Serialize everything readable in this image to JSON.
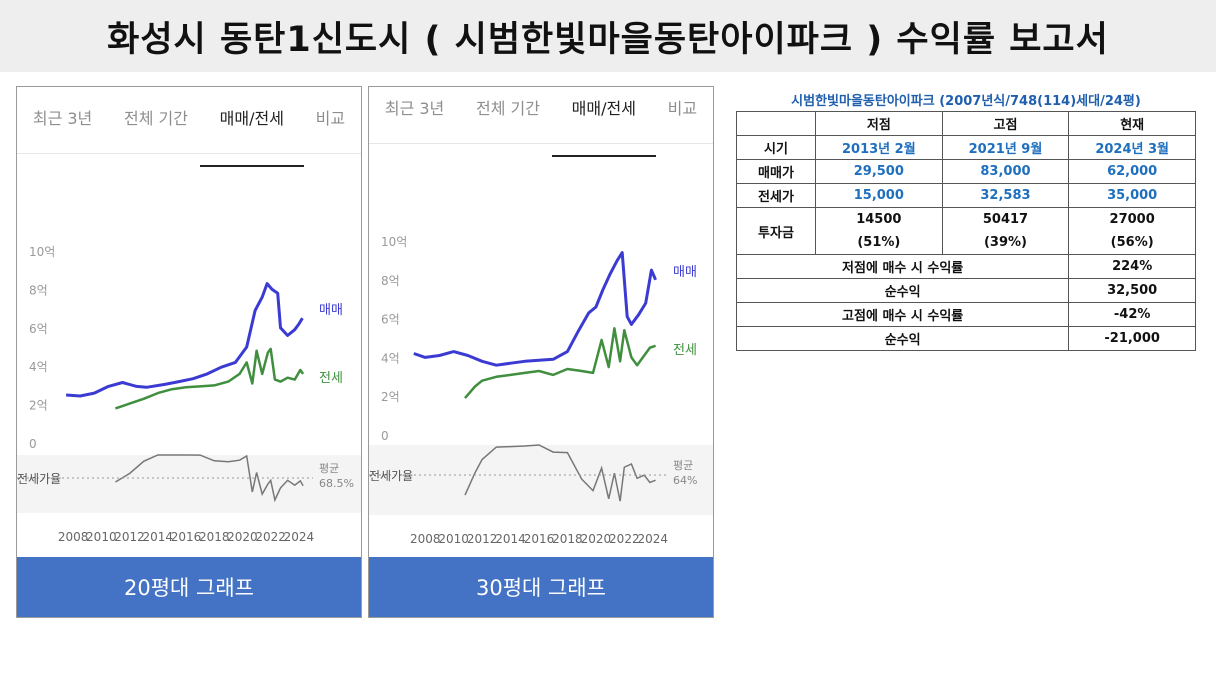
{
  "page": {
    "title": "화성시 동탄1신도시 ( 시범한빛마을동탄아이파크 ) 수익률 보고서"
  },
  "colors": {
    "sale": "#3b3bd4",
    "jeonse": "#3f8f3f",
    "caption_bg": "#4472c4",
    "table_blue": "#1f6fbf"
  },
  "tabs": [
    "최근 3년",
    "전체 기간",
    "매매/전세",
    "비교"
  ],
  "active_tab": "매매/전세",
  "charts": [
    {
      "caption": "20평대 그래프",
      "y_ticks": [
        "10억",
        "8억",
        "6억",
        "4억",
        "2억",
        "0"
      ],
      "x_ticks": [
        "2008",
        "2010",
        "2012",
        "2014",
        "2016",
        "2018",
        "2020",
        "2022",
        "2024"
      ],
      "series_labels": {
        "sale": "매매",
        "jeonse": "전세"
      },
      "ratio_label": "전세가율",
      "avg_label": "평균",
      "avg_value": "68.5%"
    },
    {
      "caption": "30평대 그래프",
      "y_ticks": [
        "10억",
        "8억",
        "6억",
        "4억",
        "2억",
        "0"
      ],
      "x_ticks": [
        "2008",
        "2010",
        "2012",
        "2014",
        "2016",
        "2018",
        "2020",
        "2022",
        "2024"
      ],
      "series_labels": {
        "sale": "매매",
        "jeonse": "전세"
      },
      "ratio_label": "전세가율",
      "avg_label": "평균",
      "avg_value": "64%"
    }
  ],
  "chart_data": [
    {
      "type": "line",
      "title": "",
      "ylim": [
        0,
        10
      ],
      "xlim": [
        2007,
        2025
      ],
      "series": [
        {
          "name": "매매",
          "x": [
            2007.5,
            2008.5,
            2009.5,
            2010.5,
            2011.5,
            2012.5,
            2013.2,
            2014.5,
            2015.5,
            2016.5,
            2017.5,
            2018.5,
            2019.5,
            2020.3,
            2020.9,
            2021.4,
            2021.75,
            2022.1,
            2022.5,
            2022.7,
            2023.2,
            2023.7,
            2024.0,
            2024.25
          ],
          "values": [
            2.5,
            2.45,
            2.6,
            2.95,
            3.15,
            2.95,
            2.9,
            3.05,
            3.2,
            3.35,
            3.6,
            3.95,
            4.2,
            5.0,
            6.9,
            7.6,
            8.3,
            8.0,
            7.8,
            6.0,
            5.6,
            5.9,
            6.2,
            6.5
          ]
        },
        {
          "name": "전세",
          "x": [
            2011.0,
            2012.0,
            2013.0,
            2014.0,
            2015.0,
            2016.0,
            2017.0,
            2018.0,
            2019.0,
            2019.8,
            2020.3,
            2020.7,
            2021.0,
            2021.4,
            2021.8,
            2022.0,
            2022.3,
            2022.7,
            2023.2,
            2023.7,
            2024.1,
            2024.3
          ],
          "values": [
            1.8,
            2.05,
            2.3,
            2.6,
            2.8,
            2.9,
            2.95,
            3.0,
            3.2,
            3.6,
            4.2,
            3.1,
            4.8,
            3.6,
            4.7,
            4.9,
            3.3,
            3.2,
            3.4,
            3.3,
            3.8,
            3.6
          ]
        }
      ]
    },
    {
      "type": "line",
      "title": "",
      "ylim": [
        0,
        10
      ],
      "xlim": [
        2007,
        2025
      ],
      "series": [
        {
          "name": "매매",
          "x": [
            2007.2,
            2008.0,
            2009.0,
            2010.0,
            2011.0,
            2012.0,
            2013.0,
            2014.0,
            2015.0,
            2016.0,
            2017.0,
            2018.0,
            2018.8,
            2019.5,
            2020.0,
            2020.5,
            2021.0,
            2021.5,
            2021.85,
            2022.2,
            2022.5,
            2023.0,
            2023.5,
            2023.9,
            2024.2
          ],
          "values": [
            4.2,
            4.0,
            4.1,
            4.3,
            4.1,
            3.8,
            3.6,
            3.7,
            3.8,
            3.85,
            3.9,
            4.3,
            5.4,
            6.3,
            6.6,
            7.5,
            8.3,
            9.0,
            9.4,
            6.1,
            5.7,
            6.2,
            6.8,
            8.5,
            8.0
          ]
        },
        {
          "name": "전세",
          "x": [
            2010.8,
            2011.5,
            2012.0,
            2013.0,
            2014.0,
            2015.0,
            2016.0,
            2017.0,
            2018.0,
            2019.0,
            2019.8,
            2020.4,
            2020.9,
            2021.3,
            2021.7,
            2022.0,
            2022.5,
            2022.9,
            2023.4,
            2023.8,
            2024.2
          ],
          "values": [
            1.9,
            2.5,
            2.8,
            3.0,
            3.1,
            3.2,
            3.3,
            3.1,
            3.4,
            3.3,
            3.2,
            4.9,
            3.5,
            5.5,
            3.8,
            5.4,
            4.0,
            3.6,
            4.1,
            4.5,
            4.6
          ]
        }
      ]
    }
  ],
  "report": {
    "title": "시범한빛마을동탄아이파크 (2007년식/748(114)세대/24평)",
    "headers": [
      "저점",
      "고점",
      "현재"
    ],
    "period": {
      "label": "시기",
      "values": [
        "2013년 2월",
        "2021년 9월",
        "2024년 3월"
      ]
    },
    "sale": {
      "label": "매매가",
      "values": [
        "29,500",
        "83,000",
        "62,000"
      ]
    },
    "jeonse": {
      "label": "전세가",
      "values": [
        "15,000",
        "32,583",
        "35,000"
      ]
    },
    "invest": {
      "label": "투자금",
      "values": [
        "14500",
        "50417",
        "27000"
      ],
      "ratios": [
        "(51%)",
        "(39%)",
        "(56%)"
      ]
    },
    "low_return": {
      "label": "저점에 매수 시 수익률",
      "value": "224%"
    },
    "low_profit": {
      "label": "순수익",
      "value": "32,500"
    },
    "high_return": {
      "label": "고점에 매수 시 수익률",
      "value": "-42%"
    },
    "high_profit": {
      "label": "순수익",
      "value": "-21,000"
    }
  }
}
